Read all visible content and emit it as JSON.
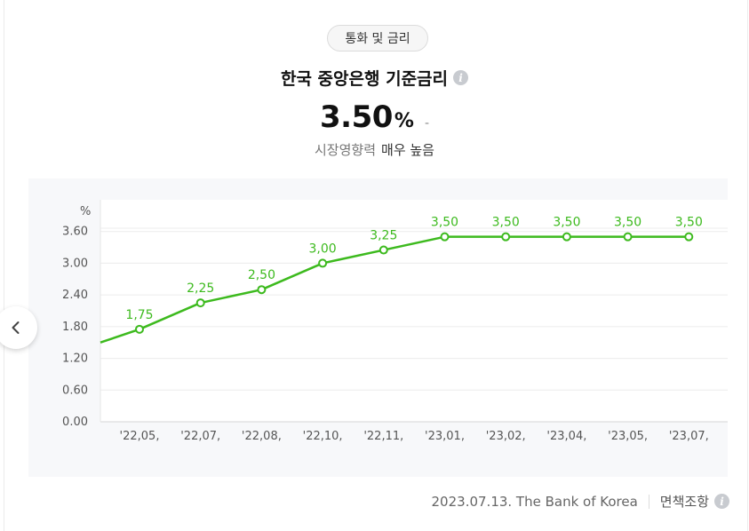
{
  "category_chip": "통화 및 금리",
  "title": "한국 중앙은행 기준금리",
  "current": {
    "value": "3.50",
    "unit": "%",
    "change": "-"
  },
  "impact": {
    "label": "시장영향력",
    "value": "매우 높음"
  },
  "footer": {
    "source": "2023.07.13. The Bank of Korea",
    "disclaimer": "면책조항"
  },
  "icons": {
    "info": "info-icon",
    "prev": "chevron-left-icon"
  },
  "chart_data": {
    "type": "line",
    "ylabel": "%",
    "ylim": [
      0,
      4.2
    ],
    "yticks": [
      "0.00",
      "0.60",
      "1.20",
      "1.80",
      "2.40",
      "3.00",
      "3.60"
    ],
    "yticks_values": [
      0,
      0.6,
      1.2,
      1.8,
      2.4,
      3.0,
      3.6
    ],
    "categories": [
      "'22,05,",
      "'22,07,",
      "'22,08,",
      "'22,10,",
      "'22,11,",
      "'23,01,",
      "'23,02,",
      "'23,04,",
      "'23,05,",
      "'23,07,"
    ],
    "values": [
      1.75,
      2.25,
      2.5,
      3.0,
      3.25,
      3.5,
      3.5,
      3.5,
      3.5,
      3.5
    ],
    "data_labels": [
      "1,75",
      "2,25",
      "2,50",
      "3,00",
      "3,25",
      "3,50",
      "3,50",
      "3,50",
      "3,50",
      "3,50"
    ],
    "prior_value": 1.5,
    "line_color": "#3dba1e",
    "grid": true
  }
}
